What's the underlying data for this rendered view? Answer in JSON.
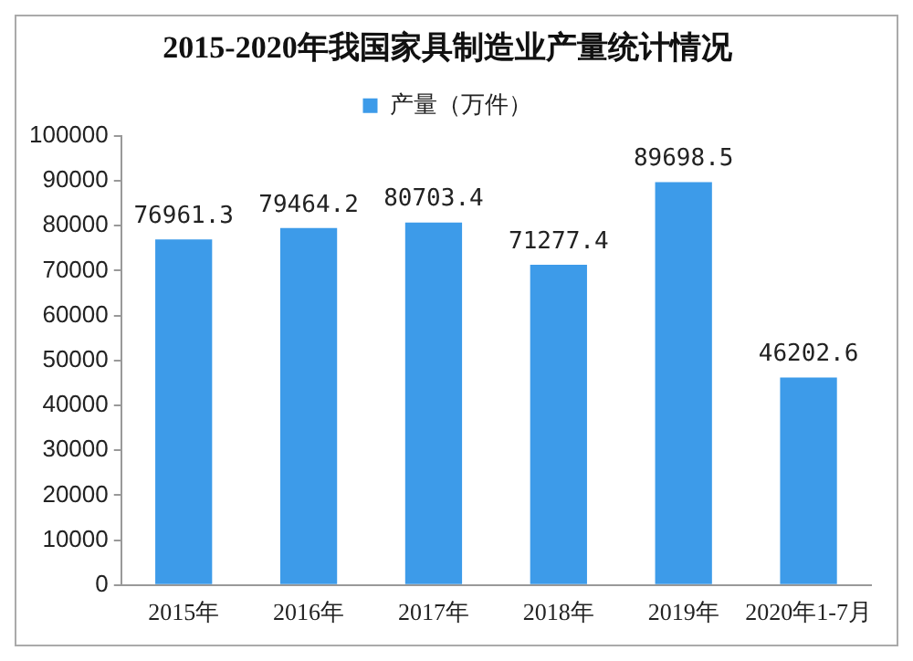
{
  "chart_data": {
    "type": "bar",
    "title": "2015-2020年我国家具制造业产量统计情况",
    "categories": [
      "2015年",
      "2016年",
      "2017年",
      "2018年",
      "2019年",
      "2020年1-7月"
    ],
    "series": [
      {
        "name": "产量（万件）",
        "color": "#3d9be9",
        "values": [
          76961.3,
          79464.2,
          80703.4,
          71277.4,
          89698.5,
          46202.6
        ]
      }
    ],
    "ylim": [
      0,
      100000
    ],
    "yticks": [
      0,
      10000,
      20000,
      30000,
      40000,
      50000,
      60000,
      70000,
      80000,
      90000,
      100000
    ],
    "grid": false,
    "legend": "top",
    "data_labels": true
  }
}
